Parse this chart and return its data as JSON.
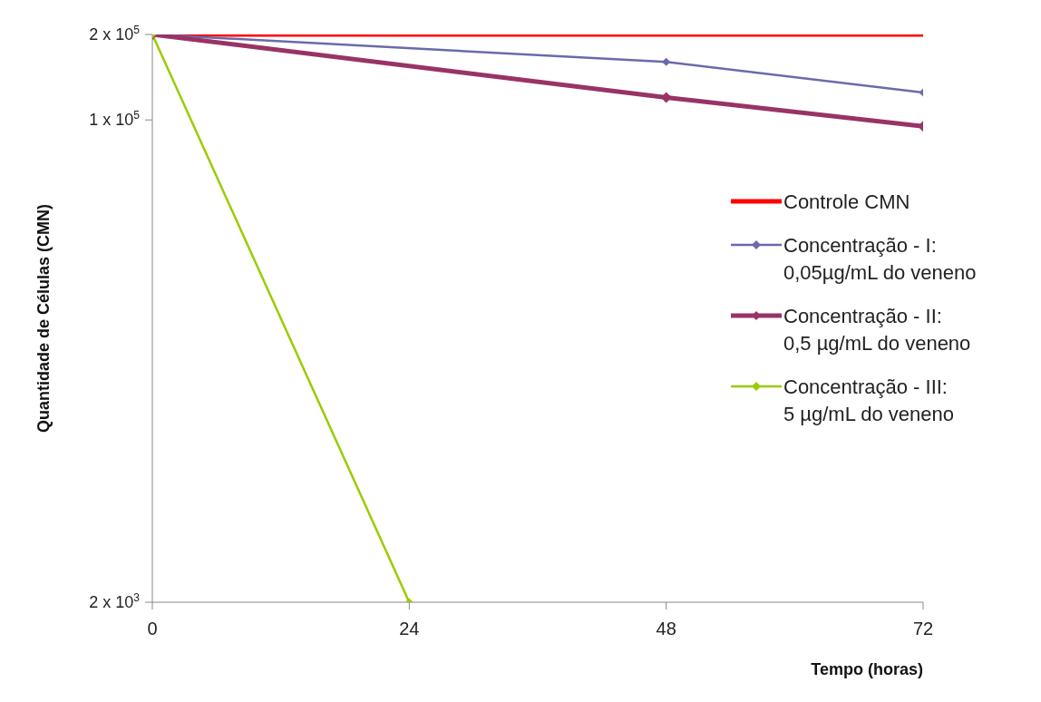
{
  "chart_data": {
    "type": "line",
    "xlabel": "Tempo (horas)",
    "ylabel": "Quantidade de Células (CMN)",
    "x": [
      0,
      24,
      48,
      72
    ],
    "xlim": [
      0,
      72
    ],
    "xticks": [
      0,
      24,
      48,
      72
    ],
    "ylim": [
      2000,
      200000
    ],
    "log": "y",
    "yticks": [
      {
        "value": 200000,
        "label": "2 x 10$^{5}$"
      },
      {
        "value": 100000,
        "label": "1 x 10$^{5}$"
      },
      {
        "value": 2000,
        "label": "2 x 10$^{3}$"
      }
    ],
    "grid": false,
    "legend": "right",
    "line_style": "solid",
    "series": [
      {
        "name": "Controle CMN",
        "color": "#ff0000",
        "marker": "none",
        "values": [
          200000,
          200000,
          200000,
          200000
        ]
      },
      {
        "name": "Concentração - I: 0,05µg/mL do veneno",
        "color": "#6a6aaa",
        "marker": "diamond",
        "values": [
          200000,
          null,
          160000,
          125000
        ]
      },
      {
        "name": "Concentração - II: 0,5 µg/mL do veneno",
        "color": "#993366",
        "marker": "diamond",
        "values": [
          200000,
          null,
          120000,
          95000
        ]
      },
      {
        "name": "Concentração - III: 5  µg/mL do veneno",
        "color": "#99cc00",
        "marker": "diamond",
        "values": [
          200000,
          2000,
          null,
          null
        ]
      }
    ]
  }
}
